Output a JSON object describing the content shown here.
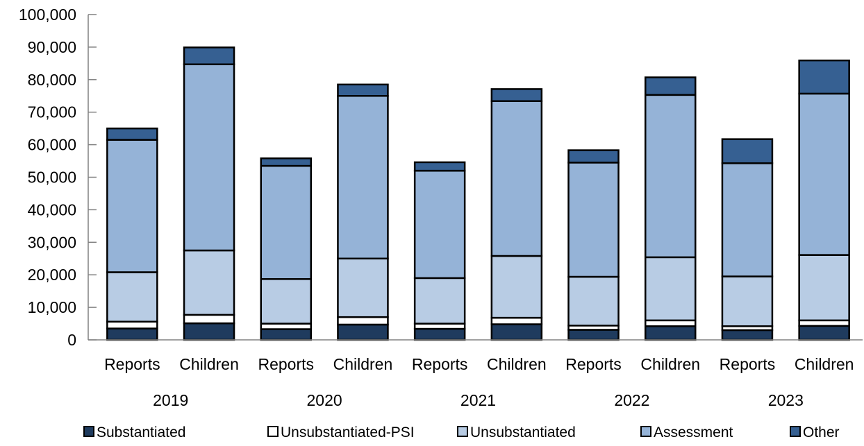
{
  "chart_data": {
    "type": "bar",
    "stacked": true,
    "title": "",
    "xlabel": "",
    "ylabel": "",
    "ylim": [
      0,
      100000
    ],
    "yticks": [
      "0",
      "10,000",
      "20,000",
      "30,000",
      "40,000",
      "50,000",
      "60,000",
      "70,000",
      "80,000",
      "90,000",
      "100,000"
    ],
    "grid": false,
    "legend_position": "bottom",
    "categories": [
      "Reports",
      "Children",
      "Reports",
      "Children",
      "Reports",
      "Children",
      "Reports",
      "Children",
      "Reports",
      "Children"
    ],
    "groups": [
      {
        "label": "2019",
        "span": [
          0,
          1
        ]
      },
      {
        "label": "2020",
        "span": [
          2,
          3
        ]
      },
      {
        "label": "2021",
        "span": [
          4,
          5
        ]
      },
      {
        "label": "2022",
        "span": [
          6,
          7
        ]
      },
      {
        "label": "2023",
        "span": [
          8,
          9
        ]
      }
    ],
    "series": [
      {
        "name": "Substantiated",
        "color": "#1f3b5e",
        "values": [
          3500,
          5100,
          3300,
          4700,
          3400,
          4800,
          3100,
          4200,
          3000,
          4300
        ]
      },
      {
        "name": "Unsubstantiated-PSI",
        "color": "#ffffff",
        "values": [
          2100,
          2600,
          1700,
          2300,
          1600,
          2000,
          1300,
          1800,
          1200,
          1700
        ]
      },
      {
        "name": "Unsubstantiated",
        "color": "#b8cce4",
        "values": [
          15200,
          19800,
          13700,
          18000,
          14000,
          19000,
          15000,
          19400,
          15300,
          20100
        ]
      },
      {
        "name": "Assessment",
        "color": "#95b3d7",
        "values": [
          40700,
          57200,
          34800,
          50000,
          33000,
          47600,
          35100,
          49900,
          34800,
          49600
        ]
      },
      {
        "name": "Other",
        "color": "#366092",
        "values": [
          3500,
          5200,
          2300,
          3500,
          2600,
          3700,
          3800,
          5400,
          7400,
          10200
        ]
      }
    ]
  }
}
